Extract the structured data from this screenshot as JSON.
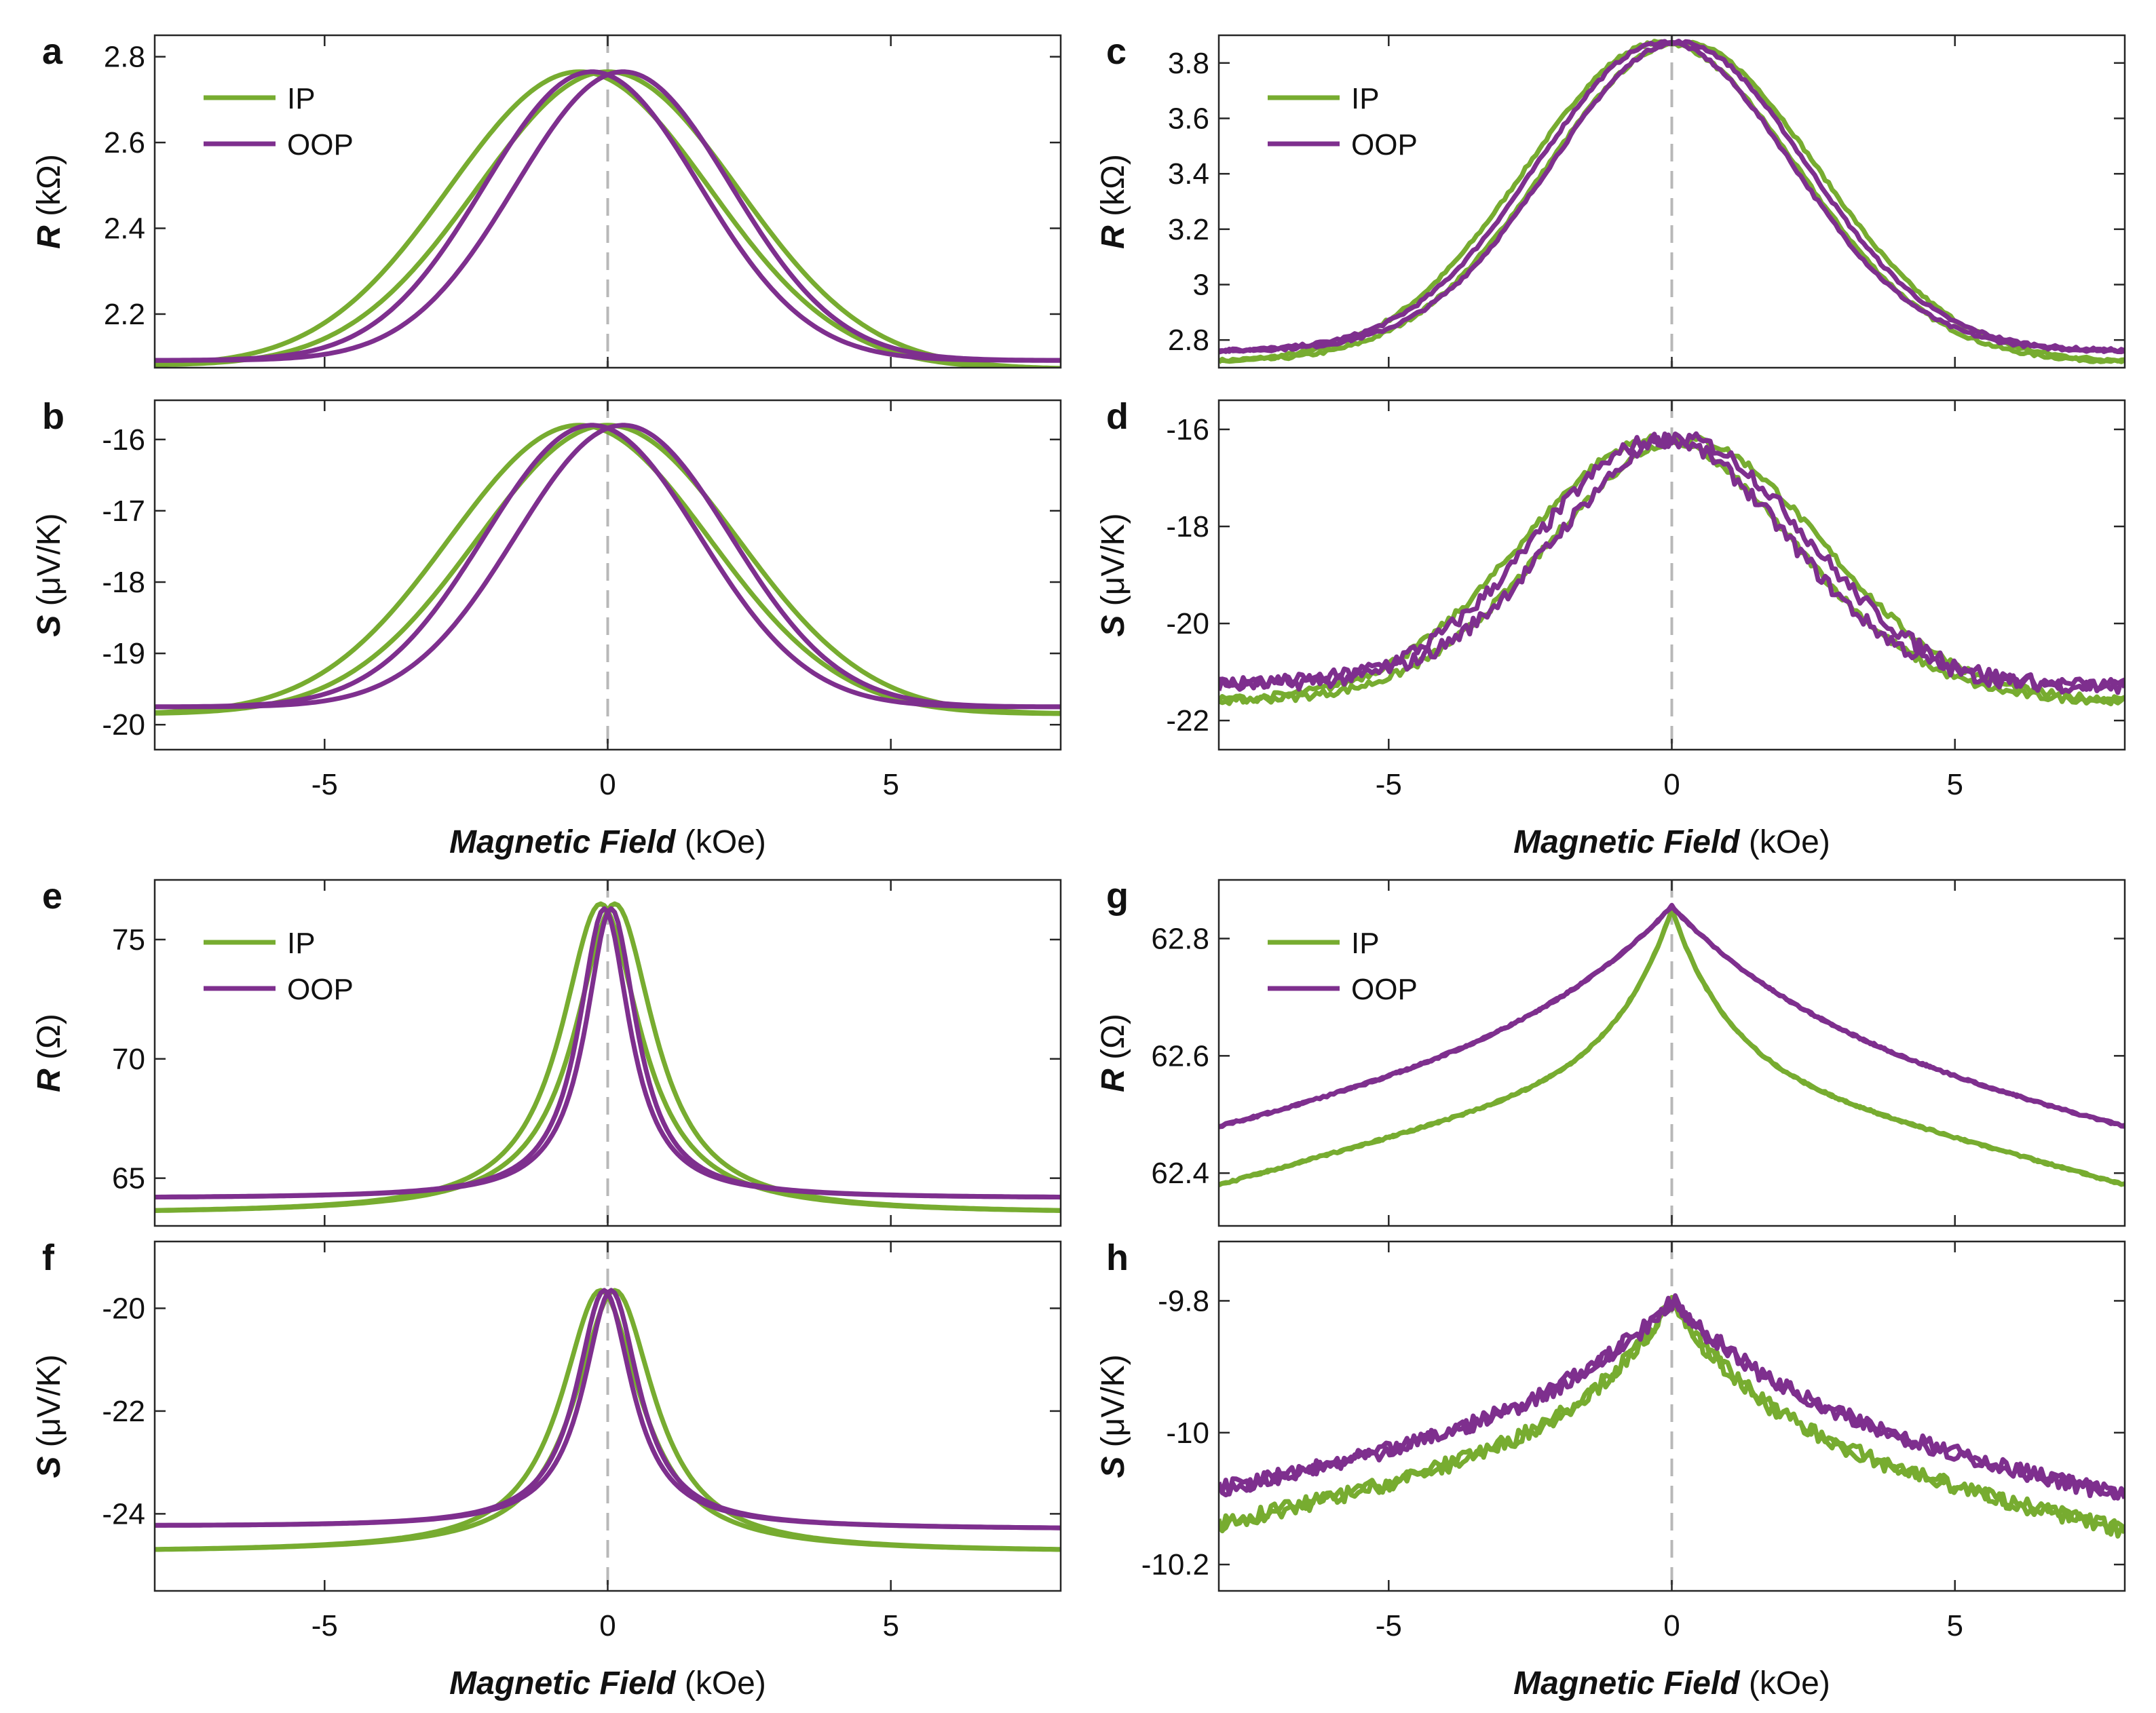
{
  "figure": {
    "x_axis": {
      "label_bold": "Magnetic Field",
      "label_unit": " (kOe)",
      "range": [
        -8,
        8
      ],
      "ticks": [
        -5,
        0,
        5
      ],
      "tick_labels": [
        "-5",
        "0",
        "5"
      ]
    },
    "legend": [
      "IP",
      "OOP"
    ],
    "colors": {
      "IP": "#77ac30",
      "OOP": "#7e2f8e",
      "zero_line": "#b8b8b8",
      "frame": "#262626"
    }
  },
  "chart_data": [
    {
      "panel": "a",
      "type": "line",
      "ylabel_symbol": "R",
      "ylabel_unit": " (kΩ)",
      "xlim": [
        -8,
        8
      ],
      "ylim": [
        2.075,
        2.85
      ],
      "yticks": [
        2.2,
        2.4,
        2.6,
        2.8
      ],
      "ytick_labels": [
        "2.2",
        "2.4",
        "2.6",
        "2.8"
      ],
      "legend": true,
      "series": [
        {
          "name": "IP",
          "shape": "gauss",
          "base": 2.08,
          "peak": 2.765,
          "width": 2.3,
          "offset": -0.25,
          "split": 0.5,
          "baseR": 2.072
        },
        {
          "name": "OOP",
          "shape": "gauss",
          "base": 2.092,
          "peak": 2.765,
          "width": 1.9,
          "offset": 0,
          "split": 0.55,
          "baseR": 2.092
        }
      ]
    },
    {
      "panel": "b",
      "type": "line",
      "ylabel_symbol": "S",
      "ylabel_unit": " (μV/K)",
      "xlim": [
        -8,
        8
      ],
      "ylim": [
        -20.35,
        -15.45
      ],
      "yticks": [
        -20,
        -19,
        -18,
        -17,
        -16
      ],
      "ytick_labels": [
        "-20",
        "-19",
        "-18",
        "-17",
        "-16"
      ],
      "legend": false,
      "series": [
        {
          "name": "IP",
          "shape": "gauss",
          "base": -19.85,
          "peak": -15.8,
          "width": 2.3,
          "offset": -0.25,
          "split": 0.5,
          "baseR": -19.85
        },
        {
          "name": "OOP",
          "shape": "gauss",
          "base": -19.75,
          "peak": -15.8,
          "width": 1.9,
          "offset": 0,
          "split": 0.55,
          "baseR": -19.75
        }
      ]
    },
    {
      "panel": "c",
      "type": "line",
      "ylabel_symbol": "R",
      "ylabel_unit": " (kΩ)",
      "xlim": [
        -8,
        8
      ],
      "ylim": [
        2.7,
        3.9
      ],
      "yticks": [
        2.8,
        3,
        3.2,
        3.4,
        3.6,
        3.8
      ],
      "ytick_labels": [
        "2.8",
        "3",
        "3.2",
        "3.4",
        "3.6",
        "3.8"
      ],
      "legend": true,
      "series": [
        {
          "name": "IP",
          "shape": "gauss",
          "base": 2.72,
          "peak": 3.875,
          "width": 2.4,
          "offset": 0,
          "split": 0.35,
          "baseR": 2.72,
          "noise": 0.006
        },
        {
          "name": "OOP",
          "shape": "gauss",
          "base": 2.76,
          "peak": 3.875,
          "width": 2.25,
          "offset": 0,
          "split": 0.25,
          "baseR": 2.76,
          "noise": 0.006
        }
      ]
    },
    {
      "panel": "d",
      "type": "line",
      "ylabel_symbol": "S",
      "ylabel_unit": " (μV/K)",
      "xlim": [
        -8,
        8
      ],
      "ylim": [
        -22.6,
        -15.4
      ],
      "yticks": [
        -22,
        -20,
        -18,
        -16
      ],
      "ytick_labels": [
        "-22",
        "-20",
        "-18",
        "-16"
      ],
      "legend": false,
      "series": [
        {
          "name": "IP",
          "shape": "gauss",
          "base": -21.6,
          "peak": -16.2,
          "width": 2.4,
          "offset": 0,
          "split": 0.5,
          "baseR": -21.6,
          "noise": 0.08
        },
        {
          "name": "OOP",
          "shape": "gauss",
          "base": -21.25,
          "peak": -16.2,
          "width": 2.2,
          "offset": 0,
          "split": 0.35,
          "baseR": -21.3,
          "noise": 0.15
        }
      ]
    },
    {
      "panel": "e",
      "type": "line",
      "ylabel_symbol": "R",
      "ylabel_unit": " (Ω)",
      "xlim": [
        -8,
        8
      ],
      "ylim": [
        63,
        77.5
      ],
      "yticks": [
        65,
        70,
        75
      ],
      "ytick_labels": [
        "65",
        "70",
        "75"
      ],
      "legend": true,
      "series": [
        {
          "name": "IP",
          "shape": "lorentz",
          "base": 63.5,
          "peak": 76.5,
          "width": 0.85,
          "offset": 0,
          "split": 0.25,
          "baseR": 63.5
        },
        {
          "name": "OOP",
          "shape": "lorentz",
          "base": 64.15,
          "peak": 76.3,
          "width": 0.55,
          "offset": 0,
          "split": 0.12,
          "baseR": 64.15
        }
      ]
    },
    {
      "panel": "f",
      "type": "line",
      "ylabel_symbol": "S",
      "ylabel_unit": " (μV/K)",
      "xlim": [
        -8,
        8
      ],
      "ylim": [
        -25.5,
        -18.7
      ],
      "yticks": [
        -24,
        -22,
        -20
      ],
      "ytick_labels": [
        "-24",
        "-22",
        "-20"
      ],
      "legend": false,
      "series": [
        {
          "name": "IP",
          "shape": "lorentz",
          "base": -24.75,
          "peak": -19.65,
          "width": 0.85,
          "offset": 0,
          "split": 0.25,
          "baseR": -24.75
        },
        {
          "name": "OOP",
          "shape": "lorentz",
          "base": -24.25,
          "peak": -19.65,
          "width": 0.6,
          "offset": 0,
          "split": 0.12,
          "baseR": -24.3
        }
      ]
    },
    {
      "panel": "g",
      "type": "line",
      "ylabel_symbol": "R",
      "ylabel_unit": " (Ω)",
      "xlim": [
        -8,
        8
      ],
      "ylim": [
        62.31,
        62.9
      ],
      "yticks": [
        62.4,
        62.6,
        62.8
      ],
      "ytick_labels": [
        "62.4",
        "62.6",
        "62.8"
      ],
      "legend": true,
      "series": [
        {
          "name": "IP",
          "shape": "cusp",
          "base": 62.38,
          "peak": 62.85,
          "width": 1.0,
          "offset": 0,
          "split": 0.0,
          "baseR": 62.38,
          "noise": 0.002
        },
        {
          "name": "OOP",
          "shape": "cusp",
          "base": 62.47,
          "peak": 62.855,
          "width": 2.6,
          "offset": 0,
          "split": 0.0,
          "baseR": 62.47,
          "noise": 0.002
        }
      ]
    },
    {
      "panel": "h",
      "type": "line",
      "ylabel_symbol": "S",
      "ylabel_unit": " (μV/K)",
      "xlim": [
        -8,
        8
      ],
      "ylim": [
        -10.24,
        -9.71
      ],
      "yticks": [
        -10.2,
        -10,
        -9.8
      ],
      "ytick_labels": [
        "-10.2",
        "-10",
        "-9.8"
      ],
      "legend": false,
      "series": [
        {
          "name": "IP",
          "shape": "cusp",
          "base": -10.14,
          "peak": -9.8,
          "width": 1.6,
          "offset": 0,
          "split": 0.03,
          "baseR": -10.15,
          "noise": 0.012
        },
        {
          "name": "OOP",
          "shape": "cusp",
          "base": -10.09,
          "peak": -9.8,
          "width": 2.2,
          "offset": 0,
          "split": 0.035,
          "baseR": -10.1,
          "noise": 0.012
        }
      ]
    }
  ]
}
